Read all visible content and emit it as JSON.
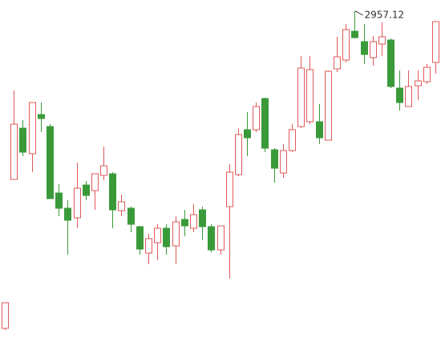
{
  "chart_data": {
    "type": "candlestick",
    "up_color": "#e05a5a",
    "down_color": "#3a9a3a",
    "open": [
      2561.12,
      2747.12,
      2811.12,
      2779.12,
      2828.12,
      2813.12,
      2730.12,
      2711.12,
      2699.12,
      2740.12,
      2733.12,
      2752.12,
      2754.12,
      2708.12,
      2711.12,
      2688.12,
      2655.12,
      2668.12,
      2686.12,
      2664.12,
      2697.12,
      2686.12,
      2709.12,
      2688.12,
      2659.12,
      2713.12,
      2753.12,
      2809.12,
      2809.12,
      2848.12,
      2784.12,
      2755.12,
      2783.12,
      2813.12,
      2819.12,
      2819.12,
      2796.12,
      2885.12,
      2896.12,
      2932.12,
      2919.12,
      2899.12,
      2916.12,
      2921.12,
      2861.12,
      2838.12,
      2864.12,
      2869.12,
      2893.12
    ],
    "high": [
      2593.12,
      2858.12,
      2821.12,
      2843.12,
      2843.12,
      2816.12,
      2741.12,
      2721.12,
      2768.12,
      2745.12,
      2754.12,
      2788.12,
      2756.12,
      2728.12,
      2713.12,
      2689.12,
      2679.12,
      2691.12,
      2691.12,
      2701.12,
      2709.12,
      2716.12,
      2713.12,
      2691.12,
      2689.12,
      2766.12,
      2811.12,
      2831.12,
      2843.12,
      2849.12,
      2786.12,
      2791.12,
      2816.12,
      2901.12,
      2901.12,
      2841.12,
      2883.12,
      2925.12,
      2941.12,
      2957.12,
      2941.12,
      2926.12,
      2943.12,
      2923.12,
      2883.12,
      2883.12,
      2883.12,
      2891.12,
      2944.12
    ],
    "low": [
      2559.12,
      2747.12,
      2776.12,
      2756.12,
      2806.12,
      2723.12,
      2701.12,
      2653.12,
      2686.12,
      2721.12,
      2709.12,
      2746.12,
      2686.12,
      2701.12,
      2681.12,
      2653.12,
      2641.12,
      2646.12,
      2653.12,
      2641.12,
      2676.12,
      2681.12,
      2671.12,
      2656.12,
      2653.12,
      2623.12,
      2751.12,
      2776.12,
      2806.12,
      2781.12,
      2743.12,
      2749.12,
      2781.12,
      2811.12,
      2816.12,
      2791.12,
      2796.12,
      2881.12,
      2893.12,
      2923.12,
      2891.12,
      2889.12,
      2901.12,
      2861.12,
      2833.12,
      2838.12,
      2846.12,
      2866.12,
      2879.12
    ],
    "close": [
      2593.12,
      2816.12,
      2781.12,
      2843.12,
      2823.12,
      2723.12,
      2711.12,
      2696.12,
      2736.12,
      2727.12,
      2754.12,
      2764.12,
      2709.12,
      2719.12,
      2691.12,
      2660.12,
      2673.12,
      2686.12,
      2663.12,
      2694.12,
      2689.12,
      2703.12,
      2688.12,
      2659.12,
      2689.12,
      2756.12,
      2803.12,
      2799.12,
      2838.12,
      2786.12,
      2761.12,
      2783.12,
      2809.12,
      2886.12,
      2884.12,
      2799.12,
      2882.12,
      2900.12,
      2934.12,
      2924.12,
      2903.12,
      2919.12,
      2925.12,
      2863.12,
      2843.12,
      2863.12,
      2870.12,
      2887.12,
      2944.12
    ]
  }
}
